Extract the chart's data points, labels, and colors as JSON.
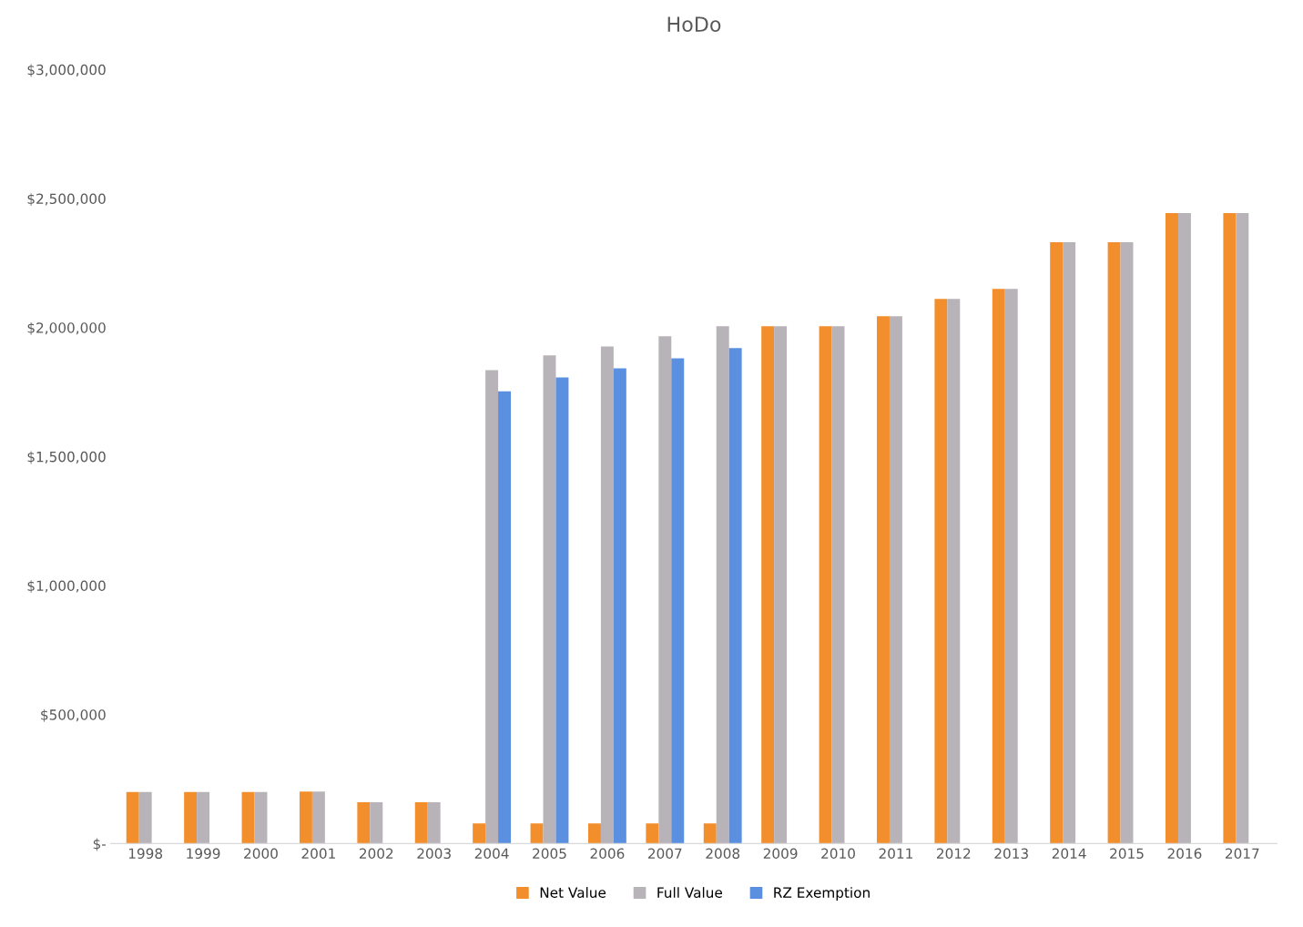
{
  "chart_data": {
    "type": "bar",
    "title": "HoDo",
    "categories": [
      "1998",
      "1999",
      "2000",
      "2001",
      "2002",
      "2003",
      "2004",
      "2005",
      "2006",
      "2007",
      "2008",
      "2009",
      "2010",
      "2011",
      "2012",
      "2013",
      "2014",
      "2015",
      "2016",
      "2017"
    ],
    "series": [
      {
        "name": "Net Value",
        "color": "#f28e2b",
        "values": [
          200000,
          200000,
          200000,
          202000,
          160000,
          160000,
          78000,
          78000,
          78000,
          78000,
          78000,
          2005000,
          2005000,
          2044000,
          2111000,
          2150000,
          2331000,
          2331000,
          2444000,
          2444000
        ]
      },
      {
        "name": "Full Value",
        "color": "#b8b3b8",
        "values": [
          200000,
          200000,
          200000,
          202000,
          160000,
          160000,
          1835000,
          1892000,
          1927000,
          1966000,
          2005000,
          2005000,
          2005000,
          2044000,
          2111000,
          2150000,
          2331000,
          2331000,
          2444000,
          2444000
        ]
      },
      {
        "name": "RZ Exemption",
        "color": "#5b8fe0",
        "values": [
          null,
          null,
          null,
          null,
          null,
          null,
          1753000,
          1807000,
          1842000,
          1881000,
          1920000,
          null,
          null,
          null,
          null,
          null,
          null,
          null,
          null,
          null
        ]
      }
    ],
    "ylim": [
      0,
      3000000
    ],
    "yticks": [
      {
        "value": 0,
        "label": "$-"
      },
      {
        "value": 500000,
        "label": "$500,000"
      },
      {
        "value": 1000000,
        "label": "$1,000,000"
      },
      {
        "value": 1500000,
        "label": "$1,500,000"
      },
      {
        "value": 2000000,
        "label": "$2,000,000"
      },
      {
        "value": 2500000,
        "label": "$2,500,000"
      },
      {
        "value": 3000000,
        "label": "$3,000,000"
      }
    ],
    "grid": false,
    "legend": "bottom"
  }
}
